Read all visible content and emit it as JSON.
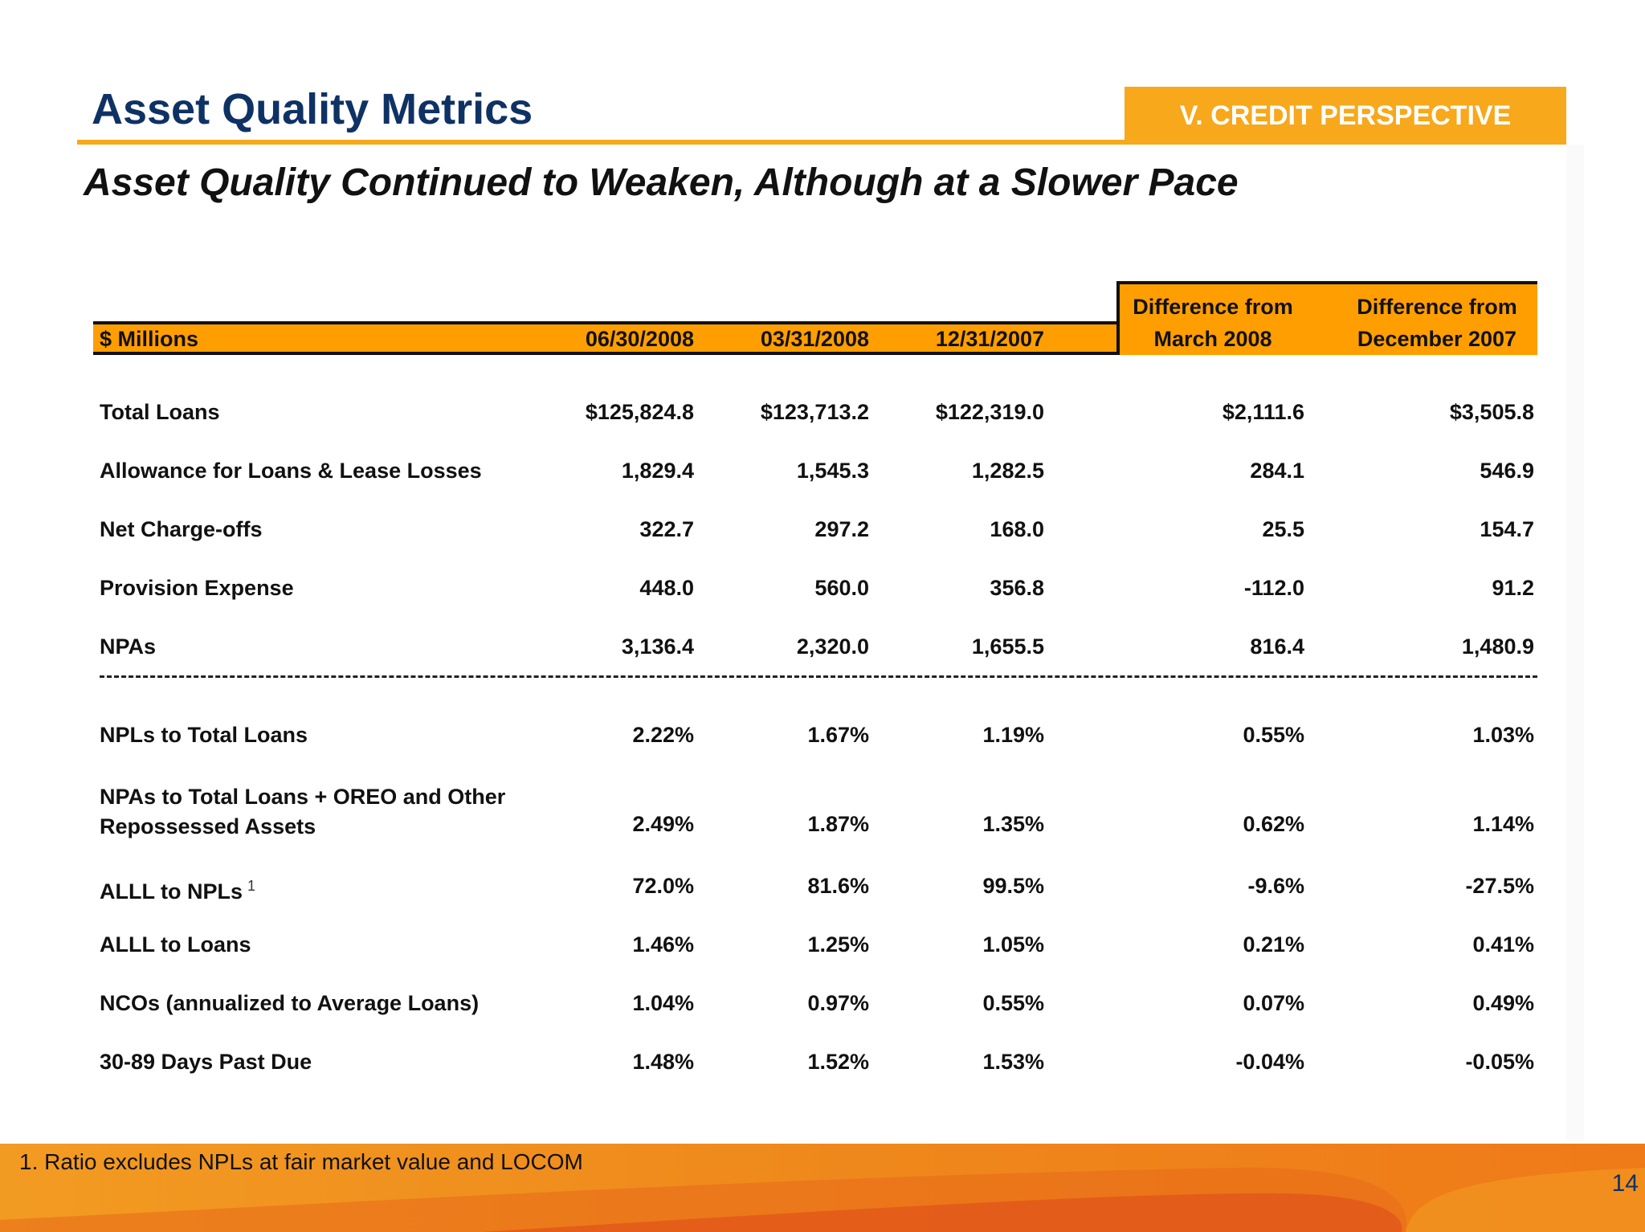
{
  "header": {
    "title": "Asset Quality Metrics",
    "section_tab": "V. CREDIT PERSPECTIVE",
    "subtitle": "Asset Quality Continued to Weaken, Although at a Slower Pace"
  },
  "table": {
    "columns": {
      "label": "$ Millions",
      "c1": "06/30/2008",
      "c2": "03/31/2008",
      "c3": "12/31/2007",
      "d1_line1": "Difference from",
      "d1_line2": "March 2008",
      "d2_line1": "Difference from",
      "d2_line2": "December 2007"
    },
    "rows": [
      {
        "label": "Total Loans",
        "c1": "$125,824.8",
        "c2": "$123,713.2",
        "c3": "$122,319.0",
        "d1": "$2,111.6",
        "d2": "$3,505.8"
      },
      {
        "label": "Allowance for Loans & Lease Losses",
        "c1": "1,829.4",
        "c2": "1,545.3",
        "c3": "1,282.5",
        "d1": "284.1",
        "d2": "546.9"
      },
      {
        "label": "Net Charge-offs",
        "c1": "322.7",
        "c2": "297.2",
        "c3": "168.0",
        "d1": "25.5",
        "d2": "154.7"
      },
      {
        "label": "Provision Expense",
        "c1": "448.0",
        "c2": "560.0",
        "c3": "356.8",
        "d1": "-112.0",
        "d2": "91.2"
      },
      {
        "label": "NPAs",
        "c1": "3,136.4",
        "c2": "2,320.0",
        "c3": "1,655.5",
        "d1": "816.4",
        "d2": "1,480.9"
      },
      {
        "label": "NPLs to Total Loans",
        "c1": "2.22%",
        "c2": "1.67%",
        "c3": "1.19%",
        "d1": "0.55%",
        "d2": "1.03%"
      },
      {
        "label": "NPAs to Total Loans + OREO and Other",
        "label2": "Repossessed Assets",
        "c1": "2.49%",
        "c2": "1.87%",
        "c3": "1.35%",
        "d1": "0.62%",
        "d2": "1.14%"
      },
      {
        "label": "ALLL to NPLs",
        "sup": "1",
        "c1": "72.0%",
        "c2": "81.6%",
        "c3": "99.5%",
        "d1": "-9.6%",
        "d2": "-27.5%"
      },
      {
        "label": "ALLL to Loans",
        "c1": "1.46%",
        "c2": "1.25%",
        "c3": "1.05%",
        "d1": "0.21%",
        "d2": "0.41%"
      },
      {
        "label": "NCOs (annualized to Average Loans)",
        "c1": "1.04%",
        "c2": "0.97%",
        "c3": "0.55%",
        "d1": "0.07%",
        "d2": "0.49%"
      },
      {
        "label": "30-89 Days Past Due",
        "c1": "1.48%",
        "c2": "1.52%",
        "c3": "1.53%",
        "d1": "-0.04%",
        "d2": "-0.05%"
      }
    ]
  },
  "footer": {
    "footnote": "1. Ratio excludes NPLs at fair market value and LOCOM",
    "page_number": "14"
  },
  "colors": {
    "title": "#0f3264",
    "accent": "#f7a81b",
    "header_fill": "#ff9e00"
  }
}
